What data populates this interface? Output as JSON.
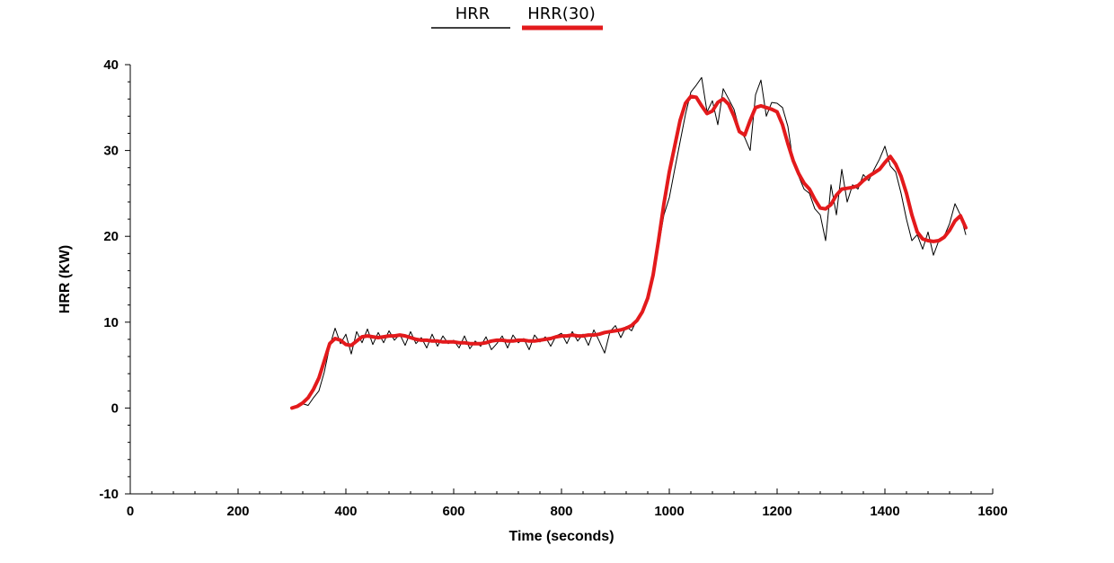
{
  "chart_data": {
    "type": "line",
    "xlabel": "Time (seconds)",
    "ylabel": "HRR (KW)",
    "xlim": [
      0,
      1600
    ],
    "ylim": [
      -10,
      40
    ],
    "xticks": [
      0,
      200,
      400,
      600,
      800,
      1000,
      1200,
      1400,
      1600
    ],
    "yticks": [
      -10,
      0,
      10,
      20,
      30,
      40
    ],
    "grid": false,
    "legend_position": "top-center",
    "series": [
      {
        "name": "HRR",
        "color": "#000000",
        "x": [
          300,
          310,
          320,
          330,
          340,
          350,
          360,
          370,
          380,
          390,
          400,
          410,
          420,
          430,
          440,
          450,
          460,
          470,
          480,
          490,
          500,
          510,
          520,
          530,
          540,
          550,
          560,
          570,
          580,
          590,
          600,
          610,
          620,
          630,
          640,
          650,
          660,
          670,
          680,
          690,
          700,
          710,
          720,
          730,
          740,
          750,
          760,
          770,
          780,
          790,
          800,
          810,
          820,
          830,
          840,
          850,
          860,
          870,
          880,
          890,
          900,
          910,
          920,
          930,
          940,
          950,
          960,
          970,
          980,
          990,
          1000,
          1010,
          1020,
          1030,
          1040,
          1050,
          1060,
          1070,
          1080,
          1090,
          1100,
          1110,
          1120,
          1130,
          1140,
          1150,
          1160,
          1170,
          1180,
          1190,
          1200,
          1210,
          1220,
          1230,
          1240,
          1250,
          1260,
          1270,
          1280,
          1290,
          1300,
          1310,
          1320,
          1330,
          1340,
          1350,
          1360,
          1370,
          1380,
          1390,
          1400,
          1410,
          1420,
          1430,
          1440,
          1450,
          1460,
          1470,
          1480,
          1490,
          1500,
          1510,
          1520,
          1530,
          1540,
          1550
        ],
        "values": [
          0.0,
          0.1,
          0.5,
          0.3,
          1.2,
          2.0,
          4.2,
          7.2,
          9.3,
          7.5,
          8.6,
          6.3,
          8.9,
          7.6,
          9.2,
          7.4,
          8.8,
          7.6,
          9.0,
          7.9,
          8.6,
          7.3,
          8.9,
          7.5,
          8.2,
          7.0,
          8.6,
          7.2,
          8.4,
          7.5,
          7.9,
          7.0,
          8.4,
          6.9,
          7.8,
          7.2,
          8.3,
          6.8,
          7.5,
          8.4,
          7.0,
          8.5,
          7.6,
          8.1,
          6.8,
          8.5,
          7.7,
          8.3,
          7.2,
          8.4,
          8.7,
          7.5,
          8.9,
          7.8,
          8.6,
          7.3,
          9.1,
          7.8,
          6.4,
          8.9,
          9.6,
          8.2,
          9.5,
          9.0,
          10.3,
          11.2,
          12.5,
          15.2,
          18.8,
          22.5,
          24.5,
          27.8,
          31.0,
          34.2,
          36.8,
          37.6,
          38.5,
          34.5,
          35.8,
          33.0,
          37.2,
          36.0,
          34.8,
          32.5,
          31.5,
          30.0,
          36.5,
          38.2,
          34.0,
          35.6,
          35.5,
          35.0,
          32.8,
          28.5,
          27.0,
          25.5,
          25.0,
          23.2,
          22.5,
          19.5,
          26.0,
          22.5,
          27.8,
          24.0,
          26.0,
          25.5,
          27.2,
          26.5,
          27.8,
          29.0,
          30.5,
          28.2,
          27.5,
          25.0,
          22.0,
          19.5,
          20.2,
          18.5,
          20.5,
          17.8,
          19.5,
          20.0,
          21.5,
          23.8,
          22.5,
          20.2
        ]
      },
      {
        "name": "HRR(30)",
        "color": "#e31a1c",
        "x": [
          300,
          310,
          320,
          330,
          340,
          350,
          360,
          370,
          380,
          390,
          400,
          410,
          420,
          430,
          440,
          450,
          460,
          470,
          480,
          490,
          500,
          510,
          520,
          530,
          540,
          550,
          560,
          570,
          580,
          590,
          600,
          610,
          620,
          630,
          640,
          650,
          660,
          670,
          680,
          690,
          700,
          710,
          720,
          730,
          740,
          750,
          760,
          770,
          780,
          790,
          800,
          810,
          820,
          830,
          840,
          850,
          860,
          870,
          880,
          890,
          900,
          910,
          920,
          930,
          940,
          950,
          960,
          970,
          980,
          990,
          1000,
          1010,
          1020,
          1030,
          1040,
          1050,
          1060,
          1070,
          1080,
          1090,
          1100,
          1110,
          1120,
          1130,
          1140,
          1150,
          1160,
          1170,
          1180,
          1190,
          1200,
          1210,
          1220,
          1230,
          1240,
          1250,
          1260,
          1270,
          1280,
          1290,
          1300,
          1310,
          1320,
          1330,
          1340,
          1350,
          1360,
          1370,
          1380,
          1390,
          1400,
          1410,
          1420,
          1430,
          1440,
          1450,
          1460,
          1470,
          1480,
          1490,
          1500,
          1510,
          1520,
          1530,
          1540,
          1550
        ],
        "values": [
          0.0,
          0.2,
          0.6,
          1.2,
          2.2,
          3.5,
          5.5,
          7.5,
          8.1,
          7.9,
          7.4,
          7.3,
          7.8,
          8.3,
          8.4,
          8.3,
          8.2,
          8.3,
          8.4,
          8.4,
          8.5,
          8.4,
          8.2,
          8.0,
          7.9,
          7.9,
          7.8,
          7.8,
          7.7,
          7.7,
          7.7,
          7.6,
          7.6,
          7.5,
          7.5,
          7.5,
          7.6,
          7.8,
          7.9,
          7.9,
          7.8,
          7.8,
          7.9,
          7.9,
          7.8,
          7.8,
          7.9,
          8.0,
          8.1,
          8.3,
          8.4,
          8.4,
          8.5,
          8.4,
          8.4,
          8.5,
          8.5,
          8.6,
          8.8,
          8.9,
          9.0,
          9.1,
          9.3,
          9.6,
          10.2,
          11.2,
          12.8,
          15.5,
          19.5,
          23.8,
          27.5,
          30.5,
          33.5,
          35.5,
          36.3,
          36.2,
          35.2,
          34.3,
          34.6,
          35.6,
          36.0,
          35.4,
          34.0,
          32.2,
          31.8,
          33.5,
          35.0,
          35.2,
          35.0,
          34.8,
          34.5,
          33.0,
          30.8,
          28.8,
          27.3,
          26.2,
          25.5,
          24.3,
          23.3,
          23.2,
          23.7,
          24.8,
          25.5,
          25.6,
          25.7,
          25.9,
          26.5,
          27.0,
          27.4,
          27.8,
          28.6,
          29.3,
          28.4,
          27.0,
          25.0,
          22.5,
          20.5,
          19.7,
          19.5,
          19.4,
          19.5,
          19.9,
          20.7,
          21.8,
          22.4,
          21.0
        ]
      }
    ]
  }
}
